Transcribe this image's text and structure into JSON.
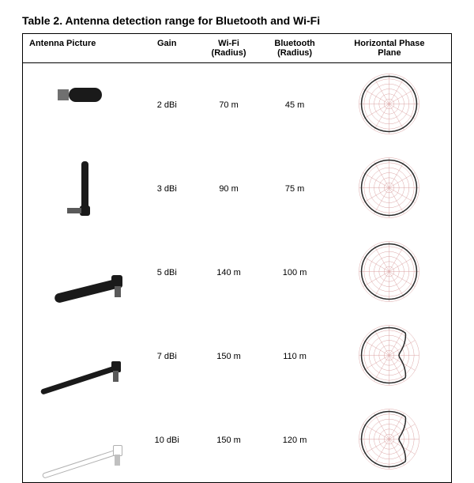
{
  "title": "Table 2. Antenna detection range for Bluetooth and Wi-Fi",
  "columns": {
    "c0": "Antenna Picture",
    "c1": "Gain",
    "c2_a": "Wi-Fi",
    "c2_b": "(Radius)",
    "c3_a": "Bluetooth",
    "c3_b": "(Radius)",
    "c4_a": "Horizontal Phase",
    "c4_b": "Plane"
  },
  "rows": [
    {
      "gain": "2 dBi",
      "wifi": "70 m",
      "bt": "45 m",
      "lobe_shape": "circle"
    },
    {
      "gain": "3 dBi",
      "wifi": "90 m",
      "bt": "75 m",
      "lobe_shape": "circle"
    },
    {
      "gain": "5 dBi",
      "wifi": "140 m",
      "bt": "100 m",
      "lobe_shape": "circle"
    },
    {
      "gain": "7 dBi",
      "wifi": "150 m",
      "bt": "110 m",
      "lobe_shape": "cardioid"
    },
    {
      "gain": "10 dBi",
      "wifi": "150 m",
      "bt": "120 m",
      "lobe_shape": "cardioid"
    }
  ],
  "pattern_style": {
    "grid_color": "#d9a0a0",
    "lobe_color": "#2a2a2a",
    "lobe_width": 1.6,
    "rings": 6,
    "spokes": 12,
    "bg": "#ffffff"
  },
  "colors": {
    "text": "#000000",
    "border": "#000000"
  },
  "fonts": {
    "title_size": 14,
    "header_size": 11,
    "cell_size": 11
  }
}
